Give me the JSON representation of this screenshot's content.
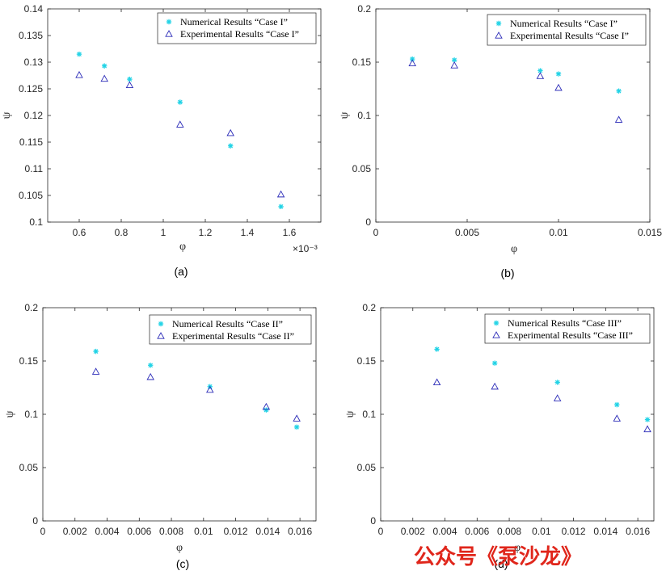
{
  "colors": {
    "numerical": "#22d3e6",
    "experimental": "#2b2bb8",
    "axis": "#262626"
  },
  "watermark": "公众号《泵沙龙》",
  "chart_data": [
    {
      "type": "scatter",
      "caption": "(a)",
      "xlabel": "φ",
      "ylabel": "ψ",
      "x_exponent_label": "×10⁻³",
      "xlim": [
        0.45,
        1.75
      ],
      "ylim": [
        0.1,
        0.14
      ],
      "xticks": [
        0.6,
        0.8,
        1,
        1.2,
        1.4,
        1.6
      ],
      "xtick_labels": [
        "0.6",
        "0.8",
        "1",
        "1.2",
        "1.4",
        "1.6"
      ],
      "yticks": [
        0.1,
        0.105,
        0.11,
        0.115,
        0.12,
        0.125,
        0.13,
        0.135,
        0.14
      ],
      "ytick_labels": [
        "0.1",
        "0.105",
        "0.11",
        "0.115",
        "0.12",
        "0.125",
        "0.13",
        "0.135",
        "0.14"
      ],
      "legend_position": "top-right",
      "series": [
        {
          "name": "Numerical Results “Case I”",
          "marker": "star",
          "x": [
            0.6,
            0.72,
            0.84,
            1.08,
            1.32,
            1.56
          ],
          "y": [
            0.1315,
            0.1293,
            0.1268,
            0.1225,
            0.1143,
            0.1029
          ]
        },
        {
          "name": "Experimental Results “Case I”",
          "marker": "triangle",
          "x": [
            0.6,
            0.72,
            0.84,
            1.08,
            1.32,
            1.56
          ],
          "y": [
            0.1276,
            0.1269,
            0.1257,
            0.1183,
            0.1167,
            0.1052
          ]
        }
      ]
    },
    {
      "type": "scatter",
      "caption": "(b)",
      "xlabel": "φ",
      "ylabel": "ψ",
      "xlim": [
        0,
        0.015
      ],
      "ylim": [
        0,
        0.2
      ],
      "xticks": [
        0,
        0.005,
        0.01,
        0.015
      ],
      "xtick_labels": [
        "0",
        "0.005",
        "0.01",
        "0.015"
      ],
      "yticks": [
        0,
        0.05,
        0.1,
        0.15,
        0.2
      ],
      "ytick_labels": [
        "0",
        "0.05",
        "0.1",
        "0.15",
        "0.2"
      ],
      "legend_position": "top-right",
      "series": [
        {
          "name": "Numerical Results “Case I”",
          "marker": "star",
          "x": [
            0.002,
            0.0043,
            0.009,
            0.01,
            0.0133
          ],
          "y": [
            0.153,
            0.152,
            0.142,
            0.139,
            0.123
          ]
        },
        {
          "name": "Experimental Results “Case I”",
          "marker": "triangle",
          "x": [
            0.002,
            0.0043,
            0.009,
            0.01,
            0.0133
          ],
          "y": [
            0.149,
            0.147,
            0.137,
            0.126,
            0.096
          ]
        }
      ]
    },
    {
      "type": "scatter",
      "caption": "(c)",
      "xlabel": "φ",
      "ylabel": "ψ",
      "xlim": [
        0,
        0.017
      ],
      "ylim": [
        0,
        0.2
      ],
      "xticks": [
        0,
        0.002,
        0.004,
        0.006,
        0.008,
        0.01,
        0.012,
        0.014,
        0.016
      ],
      "xtick_labels": [
        "0",
        "0.002",
        "0.004",
        "0.006",
        "0.008",
        "0.01",
        "0.012",
        "0.014",
        "0.016"
      ],
      "yticks": [
        0,
        0.05,
        0.1,
        0.15,
        0.2
      ],
      "ytick_labels": [
        "0",
        "0.05",
        "0.1",
        "0.15",
        "0.2"
      ],
      "legend_position": "top-right",
      "series": [
        {
          "name": "Numerical Results “Case II”",
          "marker": "star",
          "x": [
            0.0033,
            0.0067,
            0.0104,
            0.0139,
            0.0158
          ],
          "y": [
            0.159,
            0.146,
            0.126,
            0.104,
            0.088
          ]
        },
        {
          "name": "Experimental Results “Case II”",
          "marker": "triangle",
          "x": [
            0.0033,
            0.0067,
            0.0104,
            0.0139,
            0.0158
          ],
          "y": [
            0.14,
            0.135,
            0.123,
            0.107,
            0.096
          ]
        }
      ]
    },
    {
      "type": "scatter",
      "caption": "(d)",
      "xlabel": "φ",
      "ylabel": "ψ",
      "xlim": [
        0,
        0.017
      ],
      "ylim": [
        0,
        0.2
      ],
      "xticks": [
        0,
        0.002,
        0.004,
        0.006,
        0.008,
        0.01,
        0.012,
        0.014,
        0.016
      ],
      "xtick_labels": [
        "0",
        "0.002",
        "0.004",
        "0.006",
        "0.008",
        "0.01",
        "0.012",
        "0.014",
        "0.016"
      ],
      "yticks": [
        0,
        0.05,
        0.1,
        0.15,
        0.2
      ],
      "ytick_labels": [
        "0",
        "0.05",
        "0.1",
        "0.15",
        "0.2"
      ],
      "legend_position": "top-right",
      "series": [
        {
          "name": "Numerical Results “Case III”",
          "marker": "star",
          "x": [
            0.0035,
            0.0071,
            0.011,
            0.0147,
            0.0166
          ],
          "y": [
            0.161,
            0.148,
            0.13,
            0.109,
            0.095
          ]
        },
        {
          "name": "Experimental Results “Case III”",
          "marker": "triangle",
          "x": [
            0.0035,
            0.0071,
            0.011,
            0.0147,
            0.0166
          ],
          "y": [
            0.13,
            0.126,
            0.115,
            0.096,
            0.086
          ]
        }
      ]
    }
  ]
}
